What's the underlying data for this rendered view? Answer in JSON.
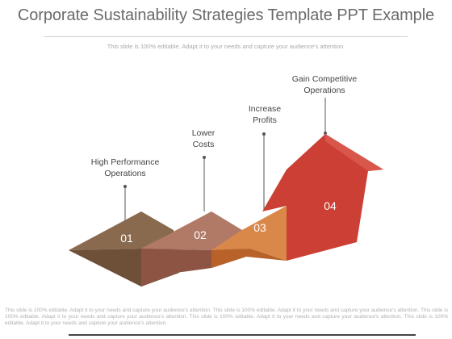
{
  "header": {
    "title": "Corporate Sustainability Strategies Template PPT Example",
    "subtitle": "This slide is 100% editable. Adapt it to your needs and capture your audience's attention."
  },
  "steps": [
    {
      "number": "01",
      "label_line1": "High Performance",
      "label_line2": "Operations",
      "color": "#8a6a4f"
    },
    {
      "number": "02",
      "label_line1": "Lower",
      "label_line2": "Costs",
      "color": "#b07a66"
    },
    {
      "number": "03",
      "label_line1": "Increase",
      "label_line2": "Profits",
      "color": "#d9884a"
    },
    {
      "number": "04",
      "label_line1": "Gain Competitive",
      "label_line2": "Operations",
      "color": "#cc3f35"
    }
  ],
  "footer": {
    "text": "This slide is 100% editable. Adapt it to your needs and capture your audience's attention. This slide is 100% editable. Adapt it to your needs and capture your audience's attention. This slide is 100% editable. Adapt it to your needs and capture your audience's attention. This slide is 100% editable. Adapt it to your needs and capture your audience's attention. This slide is 100% editable. Adapt it to your needs and capture your audience's attention."
  }
}
